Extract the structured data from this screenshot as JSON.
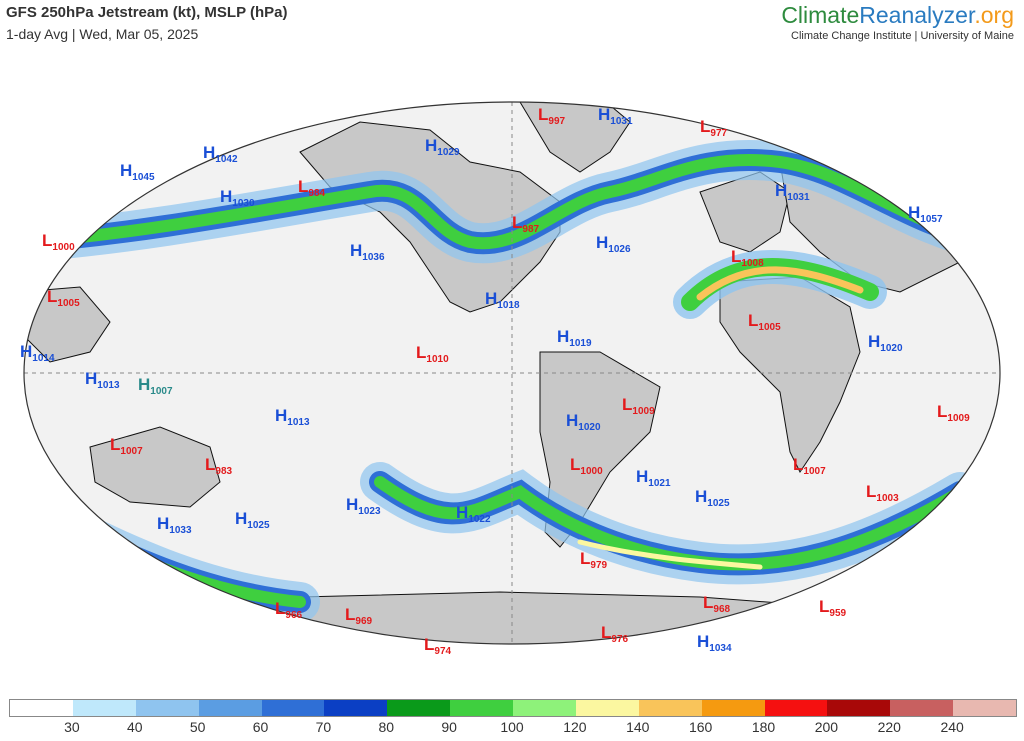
{
  "header": {
    "title": "GFS 250hPa Jetstream (kt), MSLP (hPa)",
    "subtitle": "1-day Avg | Wed, Mar 05, 2025"
  },
  "brand": {
    "part1": "Climate",
    "part2": "Reanalyzer",
    "part3": ".org",
    "tagline": "Climate Change Institute | University of Maine"
  },
  "colors": {
    "high": "#1a4fd6",
    "low": "#e31a1c",
    "tropical_high": "#2a8a8a",
    "ocean": "#f2f2f2",
    "land": "#c8c8c8",
    "coast": "#111111"
  },
  "pressure_centers": [
    {
      "type": "L",
      "value": "997",
      "color": "low"
    },
    {
      "type": "H",
      "value": "1031",
      "color": "high"
    },
    {
      "type": "L",
      "value": "977",
      "color": "low"
    },
    {
      "type": "H",
      "value": "1042",
      "color": "high"
    },
    {
      "type": "H",
      "value": "1045",
      "color": "high"
    },
    {
      "type": "H",
      "value": "1030",
      "color": "high"
    },
    {
      "type": "L",
      "value": "984",
      "color": "low"
    },
    {
      "type": "H",
      "value": "1029",
      "color": "high"
    },
    {
      "type": "H",
      "value": "1031",
      "color": "high"
    },
    {
      "type": "H",
      "value": "1057",
      "color": "high"
    },
    {
      "type": "L",
      "value": "1000",
      "color": "low"
    },
    {
      "type": "L",
      "value": "987",
      "color": "low"
    },
    {
      "type": "H",
      "value": "1026",
      "color": "high"
    },
    {
      "type": "H",
      "value": "1036",
      "color": "high"
    },
    {
      "type": "L",
      "value": "1008",
      "color": "low"
    },
    {
      "type": "L",
      "value": "1005",
      "color": "low"
    },
    {
      "type": "H",
      "value": "1018",
      "color": "high"
    },
    {
      "type": "L",
      "value": "1005",
      "color": "low"
    },
    {
      "type": "H",
      "value": "1014",
      "color": "high"
    },
    {
      "type": "H",
      "value": "1019",
      "color": "high"
    },
    {
      "type": "H",
      "value": "1020",
      "color": "high"
    },
    {
      "type": "L",
      "value": "1010",
      "color": "low"
    },
    {
      "type": "H",
      "value": "1013",
      "color": "high"
    },
    {
      "type": "H",
      "value": "1007",
      "color": "tropical_high"
    },
    {
      "type": "L",
      "value": "1009",
      "color": "low"
    },
    {
      "type": "L",
      "value": "1009",
      "color": "low"
    },
    {
      "type": "H",
      "value": "1013",
      "color": "high"
    },
    {
      "type": "H",
      "value": "1020",
      "color": "high"
    },
    {
      "type": "L",
      "value": "1007",
      "color": "low"
    },
    {
      "type": "L",
      "value": "983",
      "color": "low"
    },
    {
      "type": "L",
      "value": "1000",
      "color": "low"
    },
    {
      "type": "H",
      "value": "1021",
      "color": "high"
    },
    {
      "type": "L",
      "value": "1007",
      "color": "low"
    },
    {
      "type": "H",
      "value": "1023",
      "color": "high"
    },
    {
      "type": "H",
      "value": "1025",
      "color": "high"
    },
    {
      "type": "L",
      "value": "1003",
      "color": "low"
    },
    {
      "type": "H",
      "value": "1033",
      "color": "high"
    },
    {
      "type": "H",
      "value": "1025",
      "color": "high"
    },
    {
      "type": "H",
      "value": "1022",
      "color": "high"
    },
    {
      "type": "L",
      "value": "979",
      "color": "low"
    },
    {
      "type": "L",
      "value": "966",
      "color": "low"
    },
    {
      "type": "L",
      "value": "969",
      "color": "low"
    },
    {
      "type": "L",
      "value": "968",
      "color": "low"
    },
    {
      "type": "L",
      "value": "959",
      "color": "low"
    },
    {
      "type": "L",
      "value": "976",
      "color": "low"
    },
    {
      "type": "L",
      "value": "974",
      "color": "low"
    },
    {
      "type": "H",
      "value": "1034",
      "color": "high"
    }
  ],
  "legend": {
    "bins": [
      "#ffffff",
      "#bfe8fb",
      "#8fc4ef",
      "#5b9de2",
      "#2f6fd6",
      "#0b3fc4",
      "#0a9a1a",
      "#3fcf3f",
      "#8ef27a",
      "#fbf7a0",
      "#f9c45a",
      "#f59a10",
      "#f51010",
      "#a80808",
      "#c86060",
      "#e8b8b0"
    ],
    "ticks": [
      "30",
      "40",
      "50",
      "60",
      "70",
      "80",
      "90",
      "100",
      "120",
      "140",
      "160",
      "180",
      "200",
      "220",
      "240"
    ]
  }
}
